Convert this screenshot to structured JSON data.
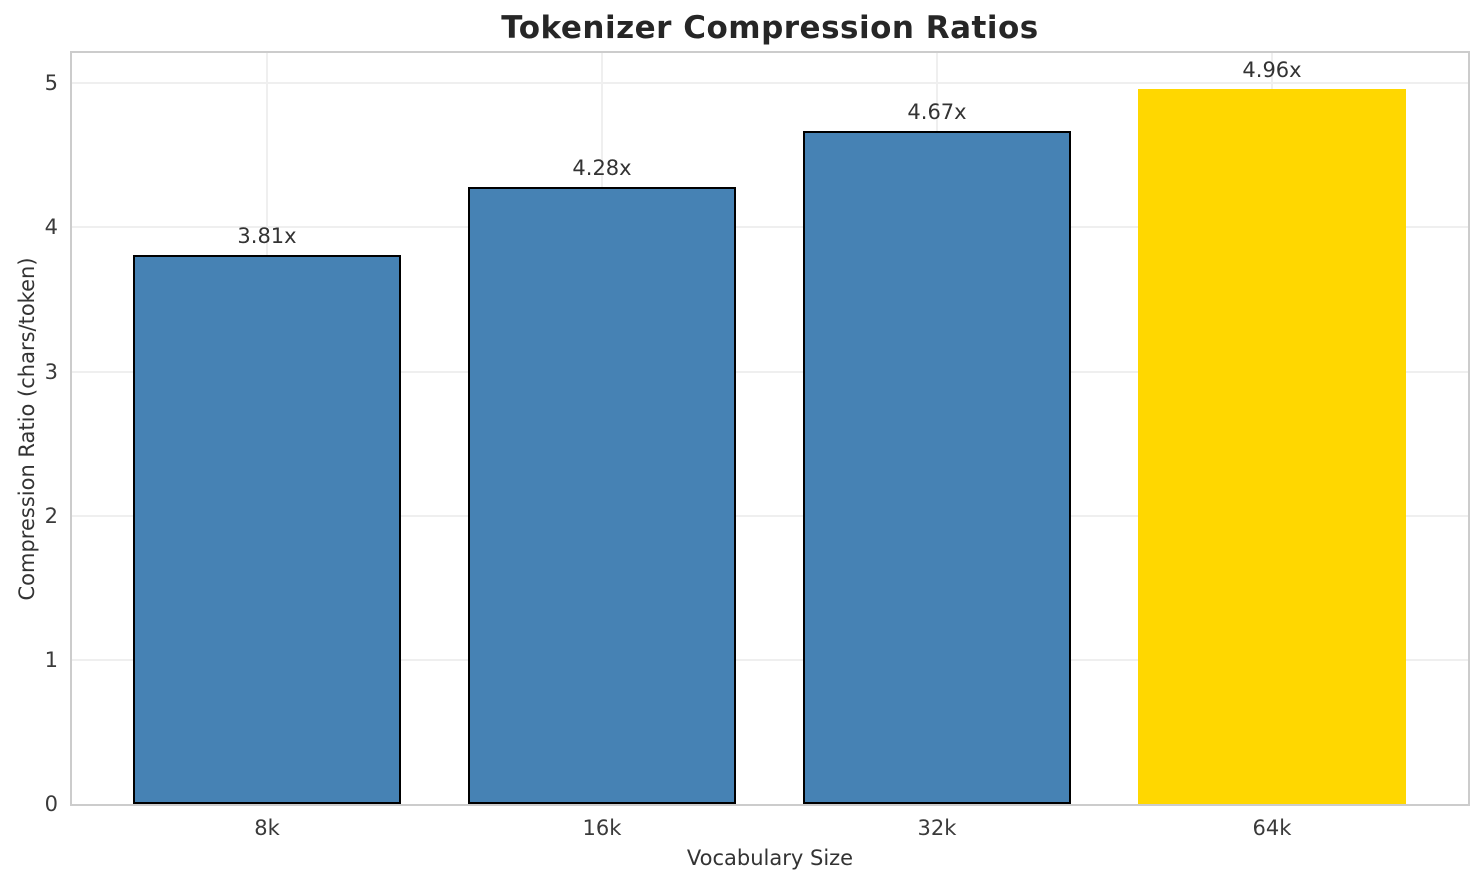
{
  "chart_data": {
    "type": "bar",
    "title": "Tokenizer Compression Ratios",
    "xlabel": "Vocabulary Size",
    "ylabel": "Compression Ratio (chars/token)",
    "categories": [
      "8k",
      "16k",
      "32k",
      "64k"
    ],
    "values": [
      3.81,
      4.28,
      4.67,
      4.96
    ],
    "bar_labels": [
      "3.81x",
      "4.28x",
      "4.67x",
      "4.96x"
    ],
    "yticks": [
      "0",
      "1",
      "2",
      "3",
      "4",
      "5"
    ],
    "ytick_values": [
      0,
      1,
      2,
      3,
      4,
      5
    ],
    "ylim": [
      0,
      5.21
    ],
    "grid": "both",
    "legend_position": "none",
    "colors": {
      "bar_colors": [
        "#4682B4",
        "#4682B4",
        "#4682B4",
        "#FFD700"
      ],
      "bar_edge_colors": [
        "#000000",
        "#000000",
        "#000000",
        "none"
      ],
      "highlight_index": 3,
      "grid_color": "#efefef",
      "spine_color": "#cccccc",
      "tick_text_color": "#3a3a3a",
      "label_text_color": "#333333",
      "title_color": "#262626",
      "background": "#ffffff"
    }
  }
}
